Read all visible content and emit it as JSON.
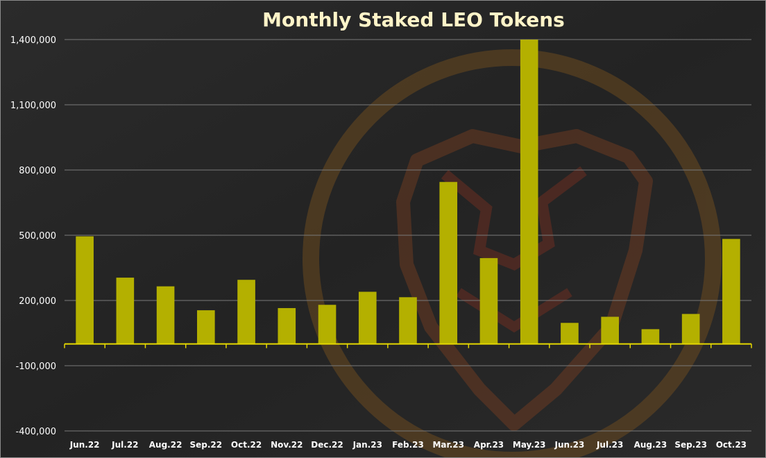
{
  "chart_data": {
    "type": "bar",
    "title": "Monthly Staked LEO Tokens",
    "xlabel": "",
    "ylabel": "",
    "categories": [
      "Jun.22",
      "Jul.22",
      "Aug.22",
      "Sep.22",
      "Oct.22",
      "Nov.22",
      "Dec.22",
      "Jan.23",
      "Feb.23",
      "Mar.23",
      "Apr.23",
      "May.23",
      "Jun.23",
      "Jul.23",
      "Aug.23",
      "Sep.23",
      "Oct.23"
    ],
    "values": [
      495000,
      305000,
      265000,
      155000,
      295000,
      165000,
      180000,
      240000,
      215000,
      745000,
      395000,
      1400000,
      97000,
      125000,
      68000,
      138000,
      483000
    ],
    "ylim": [
      -400000,
      1400000
    ],
    "yticks": [
      -400000,
      -100000,
      200000,
      500000,
      800000,
      1100000,
      1400000
    ],
    "ytick_labels": [
      "-400,000",
      "-100,000",
      "200,000",
      "500,000",
      "800,000",
      "1,100,000",
      "1,400,000"
    ],
    "grid": true,
    "legend": "none",
    "colors": {
      "background": "#262626",
      "bar": "#b4b000",
      "axis": "#e5d800",
      "grid": "#7a7a7a",
      "title": "#fff4c8",
      "tick_text": "#ffffff",
      "watermark": "#6b3a22"
    },
    "watermark_icon": "lion-shield-logo"
  }
}
